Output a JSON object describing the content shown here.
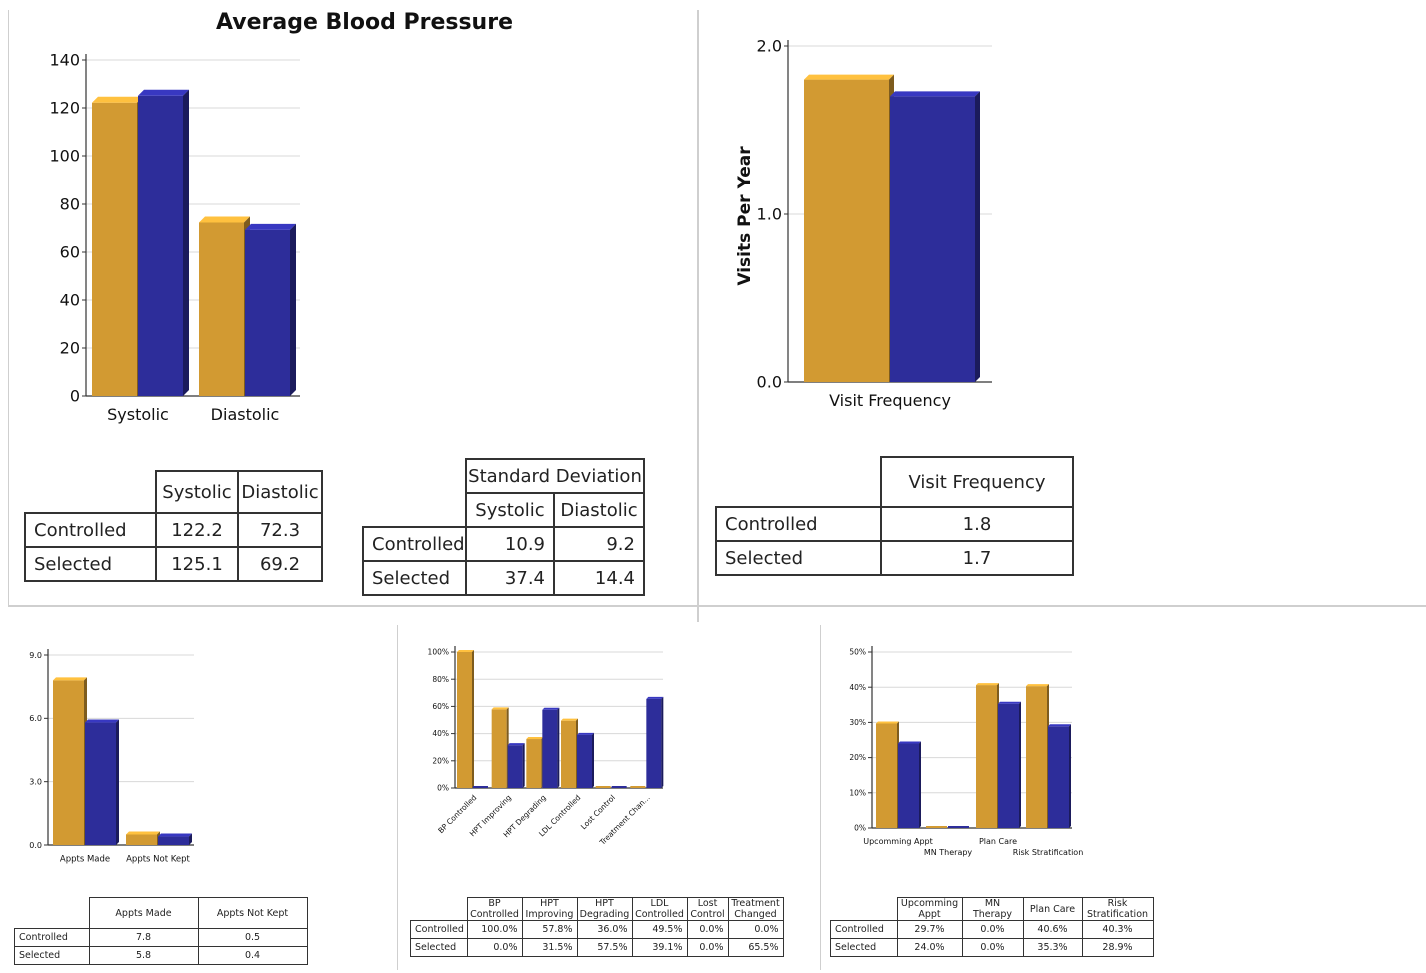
{
  "colors": {
    "controlled": "#d29a32",
    "selected": "#2d2d9a"
  },
  "bp_chart": {
    "chart_data": {
      "type": "bar",
      "title": "Average Blood Pressure",
      "categories": [
        "Systolic",
        "Diastolic"
      ],
      "series": [
        {
          "name": "Controlled",
          "values": [
            122.2,
            72.3
          ]
        },
        {
          "name": "Selected",
          "values": [
            125.1,
            69.2
          ]
        }
      ],
      "ylim": [
        0,
        140
      ],
      "yticks": [
        0,
        20,
        40,
        60,
        80,
        100,
        120,
        140
      ],
      "ytick_labels": [
        "0",
        "20",
        "40",
        "60",
        "80",
        "100",
        "120",
        "140"
      ]
    }
  },
  "bp_table": {
    "headers": [
      "Systolic",
      "Diastolic"
    ],
    "rows": [
      {
        "label": "Controlled",
        "values": [
          "122.2",
          "72.3"
        ]
      },
      {
        "label": "Selected",
        "values": [
          "125.1",
          "69.2"
        ]
      }
    ]
  },
  "sd_table": {
    "title": "Standard Deviation",
    "headers": [
      "Systolic",
      "Diastolic"
    ],
    "rows": [
      {
        "label": "Controlled",
        "values": [
          "10.9",
          "9.2"
        ]
      },
      {
        "label": "Selected",
        "values": [
          "37.4",
          "14.4"
        ]
      }
    ]
  },
  "visit_chart": {
    "chart_data": {
      "type": "bar",
      "ylabel": "Visits Per Year",
      "categories": [
        "Visit Frequency"
      ],
      "series": [
        {
          "name": "Controlled",
          "values": [
            1.8
          ]
        },
        {
          "name": "Selected",
          "values": [
            1.7
          ]
        }
      ],
      "ylim": [
        0,
        2.0
      ],
      "yticks": [
        0,
        1,
        2
      ],
      "ytick_labels": [
        "0.0",
        "1.0",
        "2.0"
      ]
    }
  },
  "visit_table": {
    "headers": [
      "Visit Frequency"
    ],
    "rows": [
      {
        "label": "Controlled",
        "values": [
          "1.8"
        ]
      },
      {
        "label": "Selected",
        "values": [
          "1.7"
        ]
      }
    ]
  },
  "appts_chart": {
    "chart_data": {
      "type": "bar",
      "categories": [
        "Appts Made",
        "Appts Not Kept"
      ],
      "series": [
        {
          "name": "Controlled",
          "values": [
            7.8,
            0.5
          ]
        },
        {
          "name": "Selected",
          "values": [
            5.8,
            0.4
          ]
        }
      ],
      "ylim": [
        0,
        9.0
      ],
      "yticks": [
        0,
        3,
        6,
        9
      ],
      "ytick_labels": [
        "0.0",
        "3.0",
        "6.0",
        "9.0"
      ]
    }
  },
  "appts_table": {
    "headers": [
      "Appts Made",
      "Appts Not Kept"
    ],
    "rows": [
      {
        "label": "Controlled",
        "values": [
          "7.8",
          "0.5"
        ]
      },
      {
        "label": "Selected",
        "values": [
          "5.8",
          "0.4"
        ]
      }
    ]
  },
  "control_chart": {
    "chart_data": {
      "type": "bar",
      "categories": [
        "BP Controlled",
        "HPT Improving",
        "HPT Degrading",
        "LDL Controlled",
        "Lost Control",
        "Treatment Chan..."
      ],
      "series": [
        {
          "name": "Controlled",
          "values": [
            100.0,
            57.8,
            36.0,
            49.5,
            0.0,
            0.0
          ]
        },
        {
          "name": "Selected",
          "values": [
            0.0,
            31.5,
            57.5,
            39.1,
            0.0,
            65.5
          ]
        }
      ],
      "ylim": [
        0,
        100
      ],
      "yticks": [
        0,
        20,
        40,
        60,
        80,
        100
      ],
      "ytick_labels": [
        "0%",
        "20%",
        "40%",
        "60%",
        "80%",
        "100%"
      ]
    }
  },
  "control_table": {
    "headers": [
      [
        "BP",
        "Controlled"
      ],
      [
        "HPT",
        "Improving"
      ],
      [
        "HPT",
        "Degrading"
      ],
      [
        "LDL",
        "Controlled"
      ],
      [
        "Lost",
        "Control"
      ],
      [
        "Treatment",
        "Changed"
      ]
    ],
    "rows": [
      {
        "label": "Controlled",
        "values": [
          "100.0%",
          "57.8%",
          "36.0%",
          "49.5%",
          "0.0%",
          "0.0%"
        ]
      },
      {
        "label": "Selected",
        "values": [
          "0.0%",
          "31.5%",
          "57.5%",
          "39.1%",
          "0.0%",
          "65.5%"
        ]
      }
    ]
  },
  "plan_chart": {
    "chart_data": {
      "type": "bar",
      "categories": [
        "Upcomming Appt",
        "MN Therapy",
        "Plan Care",
        "Risk Stratification"
      ],
      "series": [
        {
          "name": "Controlled",
          "values": [
            29.7,
            0.0,
            40.6,
            40.3
          ]
        },
        {
          "name": "Selected",
          "values": [
            24.0,
            0.0,
            35.3,
            28.9
          ]
        }
      ],
      "ylim": [
        0,
        50
      ],
      "yticks": [
        0,
        10,
        20,
        30,
        40,
        50
      ],
      "ytick_labels": [
        "0%",
        "10%",
        "20%",
        "30%",
        "40%",
        "50%"
      ]
    }
  },
  "plan_table": {
    "headers": [
      [
        "Upcomming",
        "Appt"
      ],
      [
        "MN",
        "Therapy"
      ],
      [
        "Plan Care",
        ""
      ],
      [
        "Risk",
        "Stratification"
      ]
    ],
    "rows": [
      {
        "label": "Controlled",
        "values": [
          "29.7%",
          "0.0%",
          "40.6%",
          "40.3%"
        ]
      },
      {
        "label": "Selected",
        "values": [
          "24.0%",
          "0.0%",
          "35.3%",
          "28.9%"
        ]
      }
    ]
  }
}
